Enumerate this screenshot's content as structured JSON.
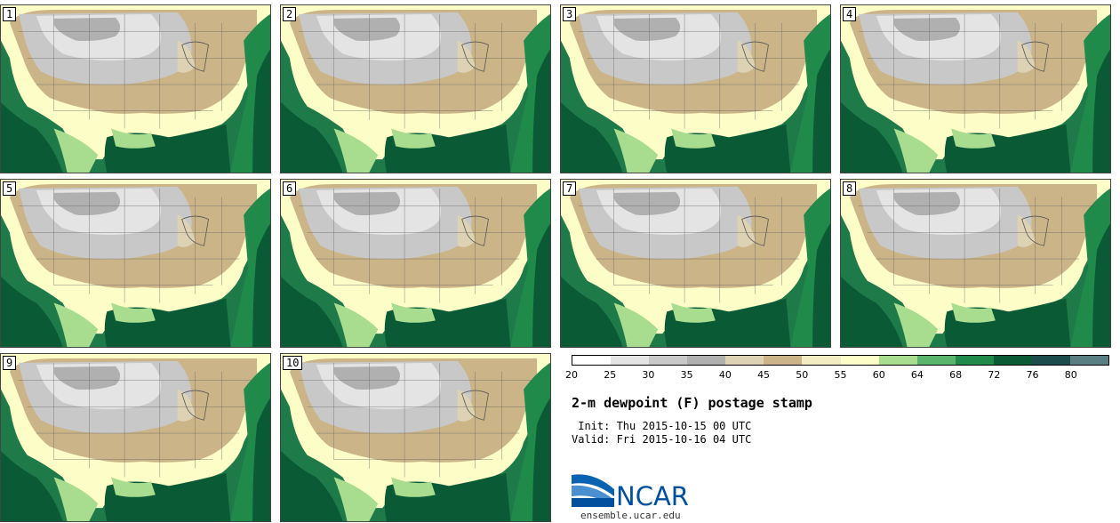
{
  "members": [
    {
      "label": "1"
    },
    {
      "label": "2"
    },
    {
      "label": "3"
    },
    {
      "label": "4"
    },
    {
      "label": "5"
    },
    {
      "label": "6"
    },
    {
      "label": "7"
    },
    {
      "label": "8"
    },
    {
      "label": "9"
    },
    {
      "label": "10"
    }
  ],
  "colorbar": {
    "ticks": [
      "20",
      "25",
      "30",
      "35",
      "40",
      "45",
      "50",
      "55",
      "60",
      "64",
      "68",
      "72",
      "76",
      "80"
    ],
    "colors": [
      "#ffffff",
      "#e4e4e4",
      "#c8c8c8",
      "#b0b0b0",
      "#ddd2b3",
      "#cbb488",
      "#f3ecc2",
      "#fdfdc7",
      "#a8dc8f",
      "#5bb46b",
      "#1f8a4a",
      "#0b5a36",
      "#1d4c4c",
      "#5a7f82"
    ]
  },
  "title": "2-m dewpoint (F) postage stamp",
  "init": " Init: Thu 2015-10-15 00 UTC",
  "valid": "Valid: Fri 2015-10-16 04 UTC",
  "logo": {
    "text": "NCAR"
  },
  "site": "ensemble.ucar.edu"
}
